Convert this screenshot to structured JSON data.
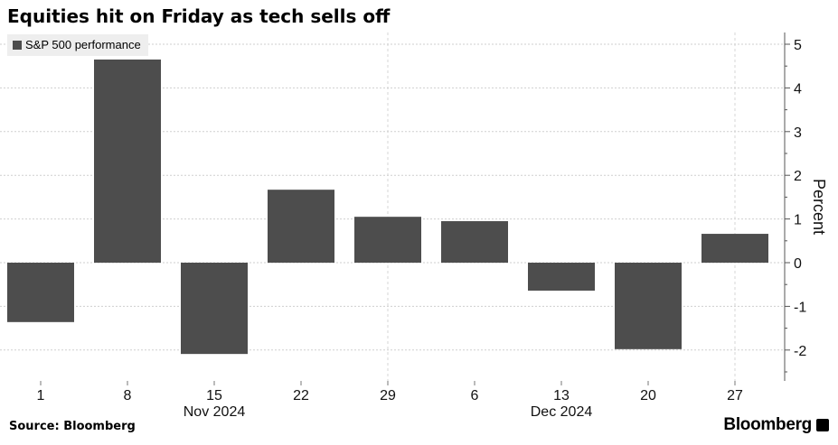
{
  "chart_data": {
    "type": "bar",
    "title": "Equities hit on Friday as tech sells off",
    "categories": [
      "2024-11-01",
      "2024-11-08",
      "2024-11-15",
      "2024-11-22",
      "2024-11-29",
      "2024-12-06",
      "2024-12-13",
      "2024-12-20",
      "2024-12-27"
    ],
    "tick_labels": [
      "1",
      "8",
      "15",
      "22",
      "29",
      "6",
      "13",
      "20",
      "27"
    ],
    "month_labels": [
      {
        "label": "Nov 2024",
        "at_index": 2
      },
      {
        "label": "Dec 2024",
        "at_index": 6
      }
    ],
    "series": [
      {
        "name": "S&P 500 performance",
        "values": [
          -1.36,
          4.65,
          -2.09,
          1.67,
          1.05,
          0.95,
          -0.64,
          -1.98,
          0.66
        ]
      }
    ],
    "ylabel": "Percent",
    "ylim": [
      -2.6,
      5.3
    ],
    "yticks": [
      -2,
      -1,
      0,
      1,
      2,
      3,
      4,
      5
    ],
    "y_axis_side": "right",
    "grid": true,
    "legend_position": "top-left",
    "bar_color": "#4d4d4d"
  },
  "footer": {
    "source": "Source: Bloomberg",
    "brand": "Bloomberg"
  }
}
